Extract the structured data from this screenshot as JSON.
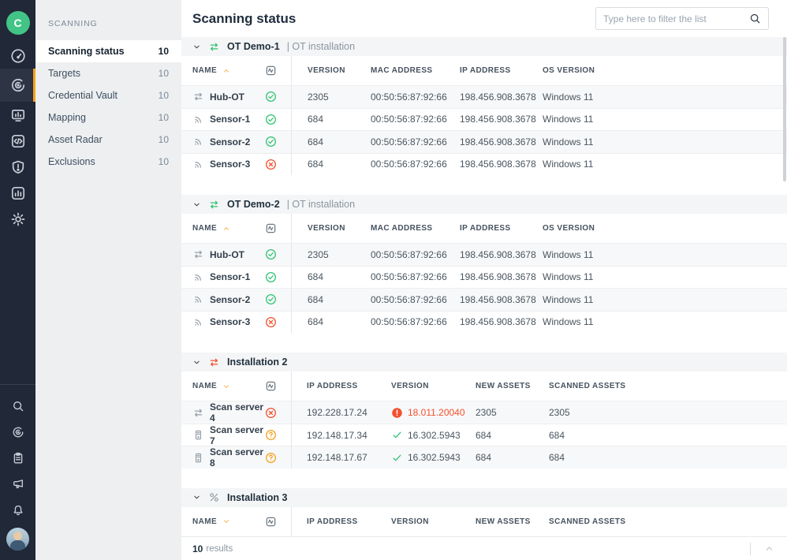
{
  "palette": {
    "accent_orange": "#f5a11d",
    "green": "#2fc272",
    "green_brand": "#42c487",
    "red": "#f4502e",
    "gray_icon": "#97a1ab"
  },
  "iconbar": {
    "brand_letter": "C",
    "items": [
      {
        "id": "dashboard",
        "icon": "gauge",
        "active": false
      },
      {
        "id": "scanning",
        "icon": "scan",
        "active": true
      },
      {
        "id": "monitoring",
        "icon": "monitor-bars",
        "active": false
      },
      {
        "id": "integrations",
        "icon": "code-box",
        "active": false
      },
      {
        "id": "security",
        "icon": "shield-alert",
        "active": false
      },
      {
        "id": "reports",
        "icon": "chart-box",
        "active": false
      },
      {
        "id": "settings",
        "icon": "gear",
        "active": false
      }
    ],
    "bottom_items": [
      {
        "id": "search",
        "icon": "search"
      },
      {
        "id": "scan-shortcut",
        "icon": "scan"
      },
      {
        "id": "tasks",
        "icon": "clipboard"
      },
      {
        "id": "announcements",
        "icon": "megaphone"
      },
      {
        "id": "notifications",
        "icon": "bell"
      }
    ]
  },
  "nav": {
    "section_label": "SCANNING",
    "items": [
      {
        "label": "Scanning status",
        "count": "10",
        "active": true
      },
      {
        "label": "Targets",
        "count": "10",
        "active": false
      },
      {
        "label": "Credential Vault",
        "count": "10",
        "active": false
      },
      {
        "label": "Mapping",
        "count": "10",
        "active": false
      },
      {
        "label": "Asset Radar",
        "count": "10",
        "active": false
      },
      {
        "label": "Exclusions",
        "count": "10",
        "active": false
      }
    ]
  },
  "header": {
    "title": "Scanning status",
    "filter_placeholder": "Type here to filter the list"
  },
  "sections": [
    {
      "title": "OT Demo-1",
      "subtitle": "OT installation",
      "icon": "transfer",
      "icon_color": "#2fc272",
      "sort": "asc",
      "layout": "a",
      "columns": [
        "NAME",
        "VERSION",
        "MAC ADDRESS",
        "IP ADDRESS",
        "OS VERSION"
      ],
      "rows": [
        {
          "icon": "transfer",
          "name": "Hub-OT",
          "status": "ok",
          "cells": [
            {
              "text": "2305"
            },
            {
              "text": "00:50:56:87:92:66"
            },
            {
              "text": "198.456.908.3678"
            },
            {
              "text": "Windows 11"
            }
          ]
        },
        {
          "icon": "sensor",
          "name": "Sensor-1",
          "status": "ok",
          "cells": [
            {
              "text": "684"
            },
            {
              "text": "00:50:56:87:92:66"
            },
            {
              "text": "198.456.908.3678"
            },
            {
              "text": "Windows 11"
            }
          ]
        },
        {
          "icon": "sensor",
          "name": "Sensor-2",
          "status": "ok",
          "cells": [
            {
              "text": "684"
            },
            {
              "text": "00:50:56:87:92:66"
            },
            {
              "text": "198.456.908.3678"
            },
            {
              "text": "Windows 11"
            }
          ]
        },
        {
          "icon": "sensor",
          "name": "Sensor-3",
          "status": "error",
          "cells": [
            {
              "text": "684"
            },
            {
              "text": "00:50:56:87:92:66"
            },
            {
              "text": "198.456.908.3678"
            },
            {
              "text": "Windows 11"
            }
          ]
        }
      ]
    },
    {
      "title": "OT Demo-2",
      "subtitle": "OT installation",
      "icon": "transfer",
      "icon_color": "#2fc272",
      "sort": "asc",
      "layout": "a",
      "columns": [
        "NAME",
        "VERSION",
        "MAC ADDRESS",
        "IP ADDRESS",
        "OS VERSION"
      ],
      "rows": [
        {
          "icon": "transfer",
          "name": "Hub-OT",
          "status": "ok",
          "cells": [
            {
              "text": "2305"
            },
            {
              "text": "00:50:56:87:92:66"
            },
            {
              "text": "198.456.908.3678"
            },
            {
              "text": "Windows 11"
            }
          ]
        },
        {
          "icon": "sensor",
          "name": "Sensor-1",
          "status": "ok",
          "cells": [
            {
              "text": "684"
            },
            {
              "text": "00:50:56:87:92:66"
            },
            {
              "text": "198.456.908.3678"
            },
            {
              "text": "Windows 11"
            }
          ]
        },
        {
          "icon": "sensor",
          "name": "Sensor-2",
          "status": "ok",
          "cells": [
            {
              "text": "684"
            },
            {
              "text": "00:50:56:87:92:66"
            },
            {
              "text": "198.456.908.3678"
            },
            {
              "text": "Windows 11"
            }
          ]
        },
        {
          "icon": "sensor",
          "name": "Sensor-3",
          "status": "error",
          "cells": [
            {
              "text": "684"
            },
            {
              "text": "00:50:56:87:92:66"
            },
            {
              "text": "198.456.908.3678"
            },
            {
              "text": "Windows 11"
            }
          ]
        }
      ]
    },
    {
      "title": "Installation 2",
      "subtitle": "",
      "icon": "transfer",
      "icon_color": "#f4502e",
      "sort": "desc",
      "layout": "b",
      "columns": [
        "NAME",
        "IP ADDRESS",
        "VERSION",
        "NEW ASSETS",
        "SCANNED ASSETS"
      ],
      "rows": [
        {
          "icon": "transfer",
          "name": "Scan server 4",
          "status": "error",
          "cells": [
            {
              "text": "192.228.17.24"
            },
            {
              "icon": "error-filled",
              "icon_color": "#f4502e",
              "text": "18.011.20040",
              "variant": "error"
            },
            {
              "text": "2305"
            },
            {
              "text": "2305"
            }
          ]
        },
        {
          "icon": "server",
          "name": "Scan server 7",
          "status": "unknown",
          "cells": [
            {
              "text": "192.148.17.34"
            },
            {
              "icon": "check",
              "icon_color": "#2fc272",
              "text": "16.302.5943"
            },
            {
              "text": "684"
            },
            {
              "text": "684"
            }
          ]
        },
        {
          "icon": "server",
          "name": "Scan server 8",
          "status": "unknown",
          "cells": [
            {
              "text": "192.148.17.67"
            },
            {
              "icon": "check",
              "icon_color": "#2fc272",
              "text": "16.302.5943"
            },
            {
              "text": "684"
            },
            {
              "text": "684"
            }
          ]
        }
      ]
    },
    {
      "title": "Installation 3",
      "subtitle": "",
      "icon": "unlink",
      "icon_color": "#9aa5ad",
      "sort": "desc",
      "layout": "b",
      "columns": [
        "NAME",
        "IP ADDRESS",
        "VERSION",
        "NEW ASSETS",
        "SCANNED ASSETS"
      ],
      "rows": []
    }
  ],
  "footer": {
    "count": "10",
    "label": "results"
  }
}
